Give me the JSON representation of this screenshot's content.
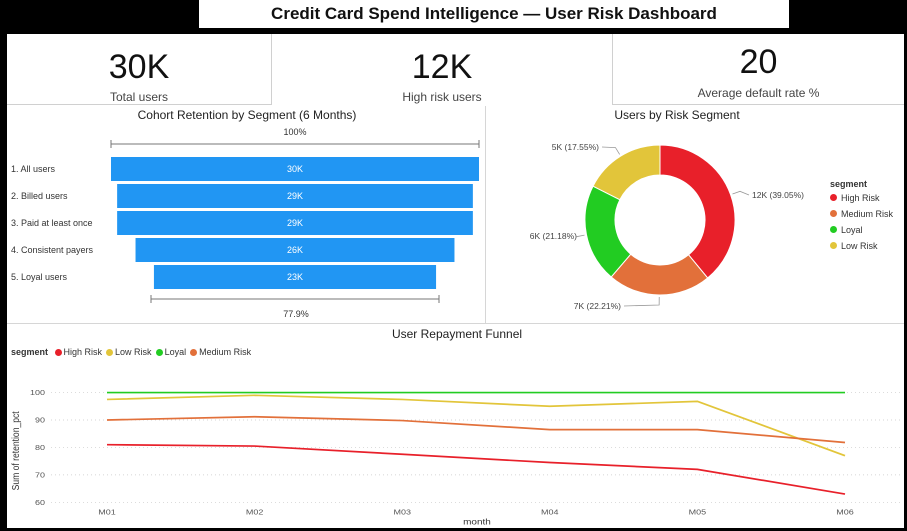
{
  "dashboard": {
    "title": "Credit Card Spend Intelligence — User Risk Dashboard"
  },
  "kpis": [
    {
      "value": "30K",
      "label": "Total users"
    },
    {
      "value": "12K",
      "label": "High risk users"
    },
    {
      "value": "20",
      "label": "Average default rate %"
    }
  ],
  "colors": {
    "high_risk": "#E8202A",
    "medium_risk": "#E2703A",
    "loyal": "#22CC22",
    "low_risk": "#E2C53A",
    "funnel_bar": "#2196F3"
  },
  "funnel": {
    "title": "Cohort Retention by Segment (6 Months)",
    "top_pct": "100%",
    "bottom_pct": "77.9%",
    "chart_data": {
      "type": "bar",
      "categories": [
        "1. All users",
        "2. Billed users",
        "3. Paid at least once",
        "4. Consistent payers",
        "5. Loyal users"
      ],
      "values": [
        30,
        29,
        29,
        26,
        23
      ],
      "value_labels": [
        "30K",
        "29K",
        "29K",
        "26K",
        "23K"
      ]
    }
  },
  "donut": {
    "title": "Users by Risk Segment",
    "legend_title": "segment",
    "chart_data": {
      "type": "pie",
      "categories": [
        "High Risk",
        "Medium Risk",
        "Loyal",
        "Low Risk"
      ],
      "values": [
        39.05,
        22.21,
        21.18,
        17.55
      ],
      "labels": [
        "12K (39.05%)",
        "7K (22.21%)",
        "6K (21.18%)",
        "5K (17.55%)"
      ]
    }
  },
  "line": {
    "title": "User Repayment Funnel",
    "legend_title": "segment",
    "chart_data": {
      "type": "line",
      "x": [
        "M01",
        "M02",
        "M03",
        "M04",
        "M05",
        "M06"
      ],
      "series": [
        {
          "name": "High Risk",
          "values": [
            81,
            80.5,
            77.5,
            74.5,
            72,
            63
          ]
        },
        {
          "name": "Low Risk",
          "values": [
            97.5,
            99,
            97.5,
            95,
            96.8,
            77
          ]
        },
        {
          "name": "Loyal",
          "values": [
            100,
            100,
            100,
            100,
            100,
            100
          ]
        },
        {
          "name": "Medium Risk",
          "values": [
            90,
            91.2,
            89.8,
            86.5,
            86.5,
            81.8
          ]
        }
      ],
      "xlabel": "month",
      "ylabel": "Sum of retention_pct",
      "ylim": [
        60,
        100
      ],
      "yticks": [
        "60",
        "70",
        "80",
        "90",
        "100"
      ],
      "grid": true,
      "legend_position": "top-left"
    }
  }
}
